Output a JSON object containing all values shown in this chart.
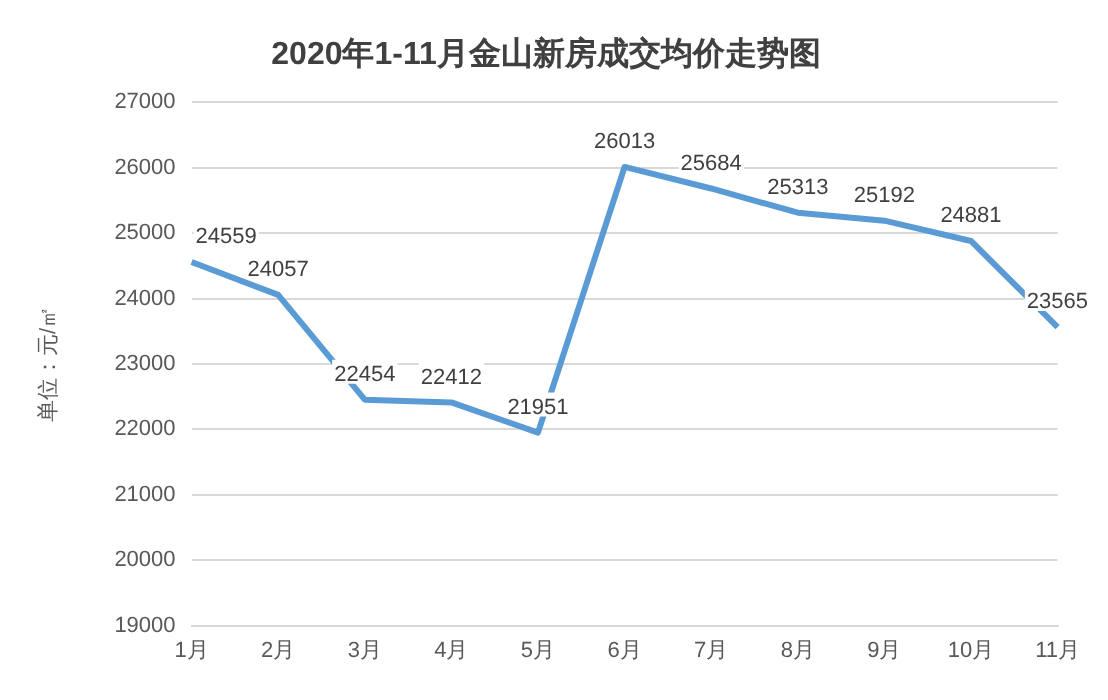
{
  "chart_data": {
    "type": "line",
    "title": "2020年1-11月金山新房成交均价走势图",
    "ylabel": "单位：元/㎡",
    "categories": [
      "1月",
      "2月",
      "3月",
      "4月",
      "5月",
      "6月",
      "7月",
      "8月",
      "9月",
      "10月",
      "11月"
    ],
    "series": [
      {
        "color": "#5b9bd5",
        "values": [
          24559,
          24057,
          22454,
          22412,
          21951,
          26013,
          25684,
          25313,
          25192,
          24881,
          23565
        ]
      }
    ],
    "ylim": [
      19000,
      27000
    ],
    "yticks": [
      19000,
      20000,
      21000,
      22000,
      23000,
      24000,
      25000,
      26000,
      27000
    ],
    "grid": "y",
    "data_labels": true,
    "legend": false,
    "marker": "none",
    "line_style": "solid"
  }
}
